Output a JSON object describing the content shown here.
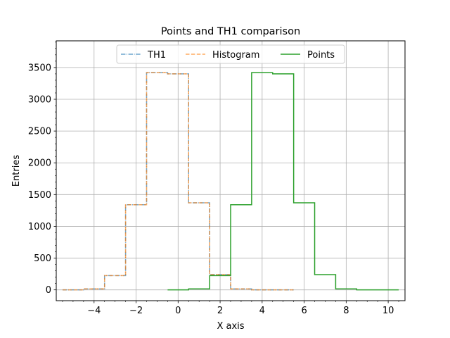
{
  "chart_data": {
    "type": "line",
    "title": "Points and TH1 comparison",
    "xlabel": "X axis",
    "ylabel": "Entries",
    "xlim": [
      -5.8,
      10.8
    ],
    "ylim": [
      -170,
      3920
    ],
    "xticks": [
      -4,
      -2,
      0,
      2,
      4,
      6,
      8,
      10
    ],
    "xtick_labels": [
      "−4",
      "−2",
      "0",
      "2",
      "4",
      "6",
      "8",
      "10"
    ],
    "yticks": [
      0,
      500,
      1000,
      1500,
      2000,
      2500,
      3000,
      3500
    ],
    "ytick_labels": [
      "0",
      "500",
      "1000",
      "1500",
      "2000",
      "2500",
      "3000",
      "3500"
    ],
    "grid": true,
    "legend_position": "top-center",
    "series": [
      {
        "name": "TH1",
        "color": "#1f77b4",
        "linestyle": "dashdot",
        "drawstyle": "steps",
        "x": [
          -5,
          -4,
          -3,
          -2,
          -1,
          0,
          1,
          2,
          3,
          4,
          5
        ],
        "y": [
          0,
          15,
          225,
          1340,
          3420,
          3400,
          1370,
          240,
          15,
          0,
          0
        ]
      },
      {
        "name": "Histogram",
        "color": "#ff7f0e",
        "linestyle": "dashed",
        "drawstyle": "steps",
        "x": [
          -5,
          -4,
          -3,
          -2,
          -1,
          0,
          1,
          2,
          3,
          4,
          5
        ],
        "y": [
          0,
          15,
          225,
          1340,
          3420,
          3400,
          1370,
          240,
          15,
          0,
          0
        ]
      },
      {
        "name": "Points",
        "color": "#2ca02c",
        "linestyle": "solid",
        "drawstyle": "steps",
        "x": [
          0,
          1,
          2,
          3,
          4,
          5,
          6,
          7,
          8,
          9,
          10
        ],
        "y": [
          0,
          15,
          225,
          1340,
          3420,
          3400,
          1370,
          240,
          15,
          0,
          0
        ]
      }
    ]
  }
}
